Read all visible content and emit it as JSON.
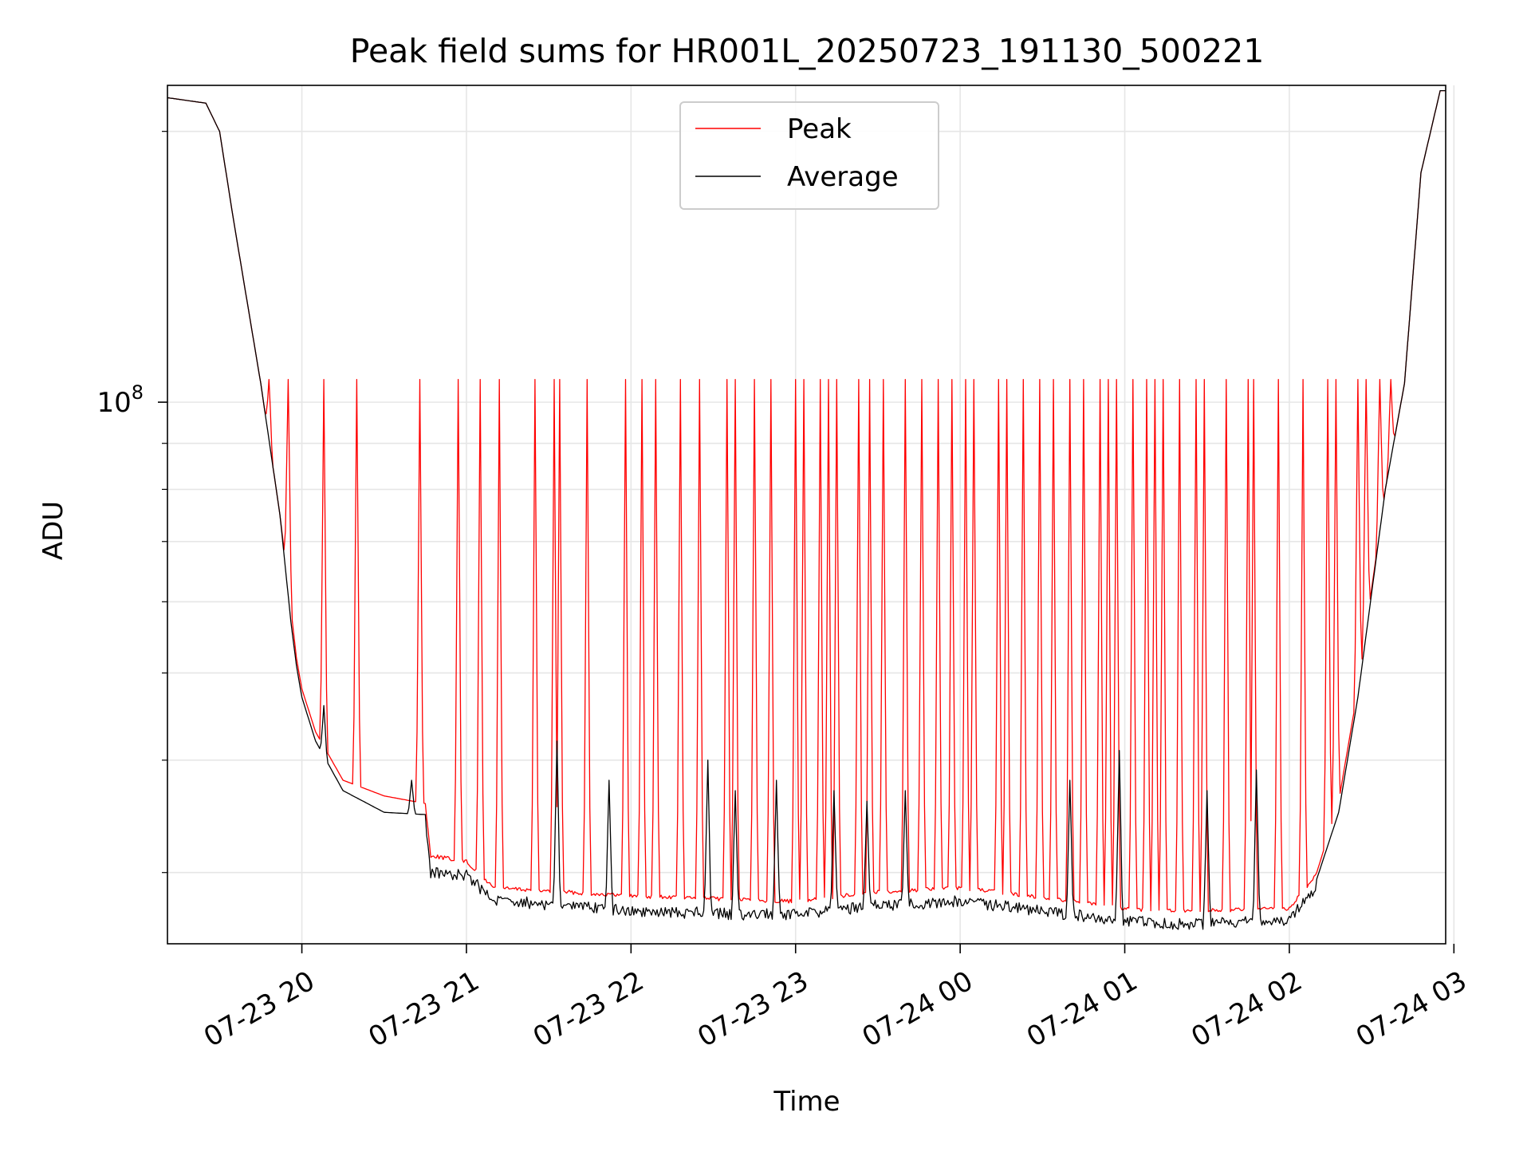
{
  "chart_data": {
    "type": "line",
    "title": "Peak field sums for HR001L_20250723_191130_500221",
    "xlabel": "Time",
    "ylabel": "ADU",
    "y_scale": "log",
    "y_tick_label": "10^8",
    "x_ticks": [
      "07-23 20",
      "07-23 21",
      "07-23 22",
      "07-23 23",
      "07-24 00",
      "07-24 01",
      "07-24 02",
      "07-24 03"
    ],
    "x_range": [
      "2025-07-23 19:11",
      "2025-07-24 02:57"
    ],
    "ylim": [
      25000000,
      225000000
    ],
    "grid": true,
    "legend_position": "upper center",
    "series": [
      {
        "name": "Peak",
        "color": "#ff0000",
        "baseline": [
          [
            "2025-07-23 19:11",
            218000000
          ],
          [
            "2025-07-23 19:25",
            215000000
          ],
          [
            "2025-07-23 19:30",
            200000000
          ],
          [
            "2025-07-23 19:35",
            160000000
          ],
          [
            "2025-07-23 19:45",
            105000000
          ],
          [
            "2025-07-23 19:52",
            75000000
          ],
          [
            "2025-07-23 19:56",
            59000000
          ],
          [
            "2025-07-23 19:58",
            52000000
          ],
          [
            "2025-07-23 20:00",
            48000000
          ],
          [
            "2025-07-23 20:05",
            43000000
          ],
          [
            "2025-07-23 20:15",
            38000000
          ],
          [
            "2025-07-23 20:30",
            36500000
          ],
          [
            "2025-07-23 20:45",
            35800000
          ],
          [
            "2025-07-23 20:47",
            31500000
          ],
          [
            "2025-07-23 21:00",
            31000000
          ],
          [
            "2025-07-23 21:10",
            29000000
          ],
          [
            "2025-07-23 22:00",
            28400000
          ],
          [
            "2025-07-23 23:00",
            28000000
          ],
          [
            "2025-07-23 23:30",
            28700000
          ],
          [
            "2025-07-24 00:00",
            29000000
          ],
          [
            "2025-07-24 00:30",
            28300000
          ],
          [
            "2025-07-24 01:00",
            27500000
          ],
          [
            "2025-07-24 01:20",
            27300000
          ],
          [
            "2025-07-24 02:00",
            27500000
          ],
          [
            "2025-07-24 02:10",
            30000000
          ],
          [
            "2025-07-24 02:18",
            36000000
          ],
          [
            "2025-07-24 02:25",
            48000000
          ],
          [
            "2025-07-24 02:35",
            80000000
          ],
          [
            "2025-07-24 02:42",
            105000000
          ],
          [
            "2025-07-24 02:48",
            180000000
          ],
          [
            "2025-07-24 02:55",
            222000000
          ]
        ],
        "spike_value": 106000000,
        "spike_times": [
          "19:48",
          "19:55",
          "20:08",
          "20:20",
          "20:43",
          "20:57",
          "21:05",
          "21:12",
          "21:25",
          "21:32",
          "21:34",
          "21:44",
          "21:58",
          "22:04",
          "22:09",
          "22:18",
          "22:25",
          "22:35",
          "22:38",
          "22:45",
          "22:51",
          "23:00",
          "23:03",
          "23:09",
          "23:12",
          "23:15",
          "23:23",
          "23:27",
          "23:32",
          "23:40",
          "23:46",
          "23:52",
          "23:57",
          "00:02",
          "00:05",
          "00:14",
          "00:17",
          "00:23",
          "00:29",
          "00:34",
          "00:40",
          "00:45",
          "00:51",
          "00:54",
          "00:57",
          "01:03",
          "01:08",
          "01:11",
          "01:14",
          "01:20",
          "01:26",
          "01:29",
          "01:37",
          "01:45",
          "01:47",
          "01:56",
          "02:05",
          "02:14",
          "02:17",
          "02:25",
          "02:28",
          "02:33",
          "02:37"
        ]
      },
      {
        "name": "Average",
        "color": "#000000",
        "baseline": [
          [
            "2025-07-23 19:11",
            218000000
          ],
          [
            "2025-07-23 19:25",
            215000000
          ],
          [
            "2025-07-23 19:30",
            200000000
          ],
          [
            "2025-07-23 19:35",
            160000000
          ],
          [
            "2025-07-23 19:45",
            105000000
          ],
          [
            "2025-07-23 19:52",
            75000000
          ],
          [
            "2025-07-23 19:56",
            57000000
          ],
          [
            "2025-07-23 19:58",
            51000000
          ],
          [
            "2025-07-23 20:00",
            47000000
          ],
          [
            "2025-07-23 20:05",
            42000000
          ],
          [
            "2025-07-23 20:15",
            37000000
          ],
          [
            "2025-07-23 20:30",
            35000000
          ],
          [
            "2025-07-23 20:45",
            34800000
          ],
          [
            "2025-07-23 20:47",
            30500000
          ],
          [
            "2025-07-23 21:00",
            30200000
          ],
          [
            "2025-07-23 21:10",
            28400000
          ],
          [
            "2025-07-23 22:00",
            27600000
          ],
          [
            "2025-07-23 23:00",
            27300000
          ],
          [
            "2025-07-23 23:30",
            28000000
          ],
          [
            "2025-07-24 00:00",
            28300000
          ],
          [
            "2025-07-24 00:30",
            27600000
          ],
          [
            "2025-07-24 01:00",
            26900000
          ],
          [
            "2025-07-24 01:20",
            26700000
          ],
          [
            "2025-07-24 02:00",
            26900000
          ],
          [
            "2025-07-24 02:10",
            29500000
          ],
          [
            "2025-07-24 02:18",
            35000000
          ],
          [
            "2025-07-24 02:25",
            47000000
          ],
          [
            "2025-07-24 02:35",
            80000000
          ],
          [
            "2025-07-24 02:42",
            105000000
          ],
          [
            "2025-07-24 02:48",
            180000000
          ],
          [
            "2025-07-24 02:55",
            222000000
          ]
        ],
        "spike_times": [
          "20:08",
          "20:40",
          "21:33",
          "21:52",
          "22:28",
          "22:38",
          "22:53",
          "23:14",
          "23:26",
          "23:40",
          "00:40",
          "00:58",
          "01:30",
          "01:48"
        ],
        "spike_values": [
          46000000,
          38000000,
          42000000,
          38000000,
          40000000,
          37000000,
          38000000,
          37000000,
          36000000,
          37000000,
          38000000,
          41000000,
          37000000,
          39000000
        ]
      }
    ]
  }
}
